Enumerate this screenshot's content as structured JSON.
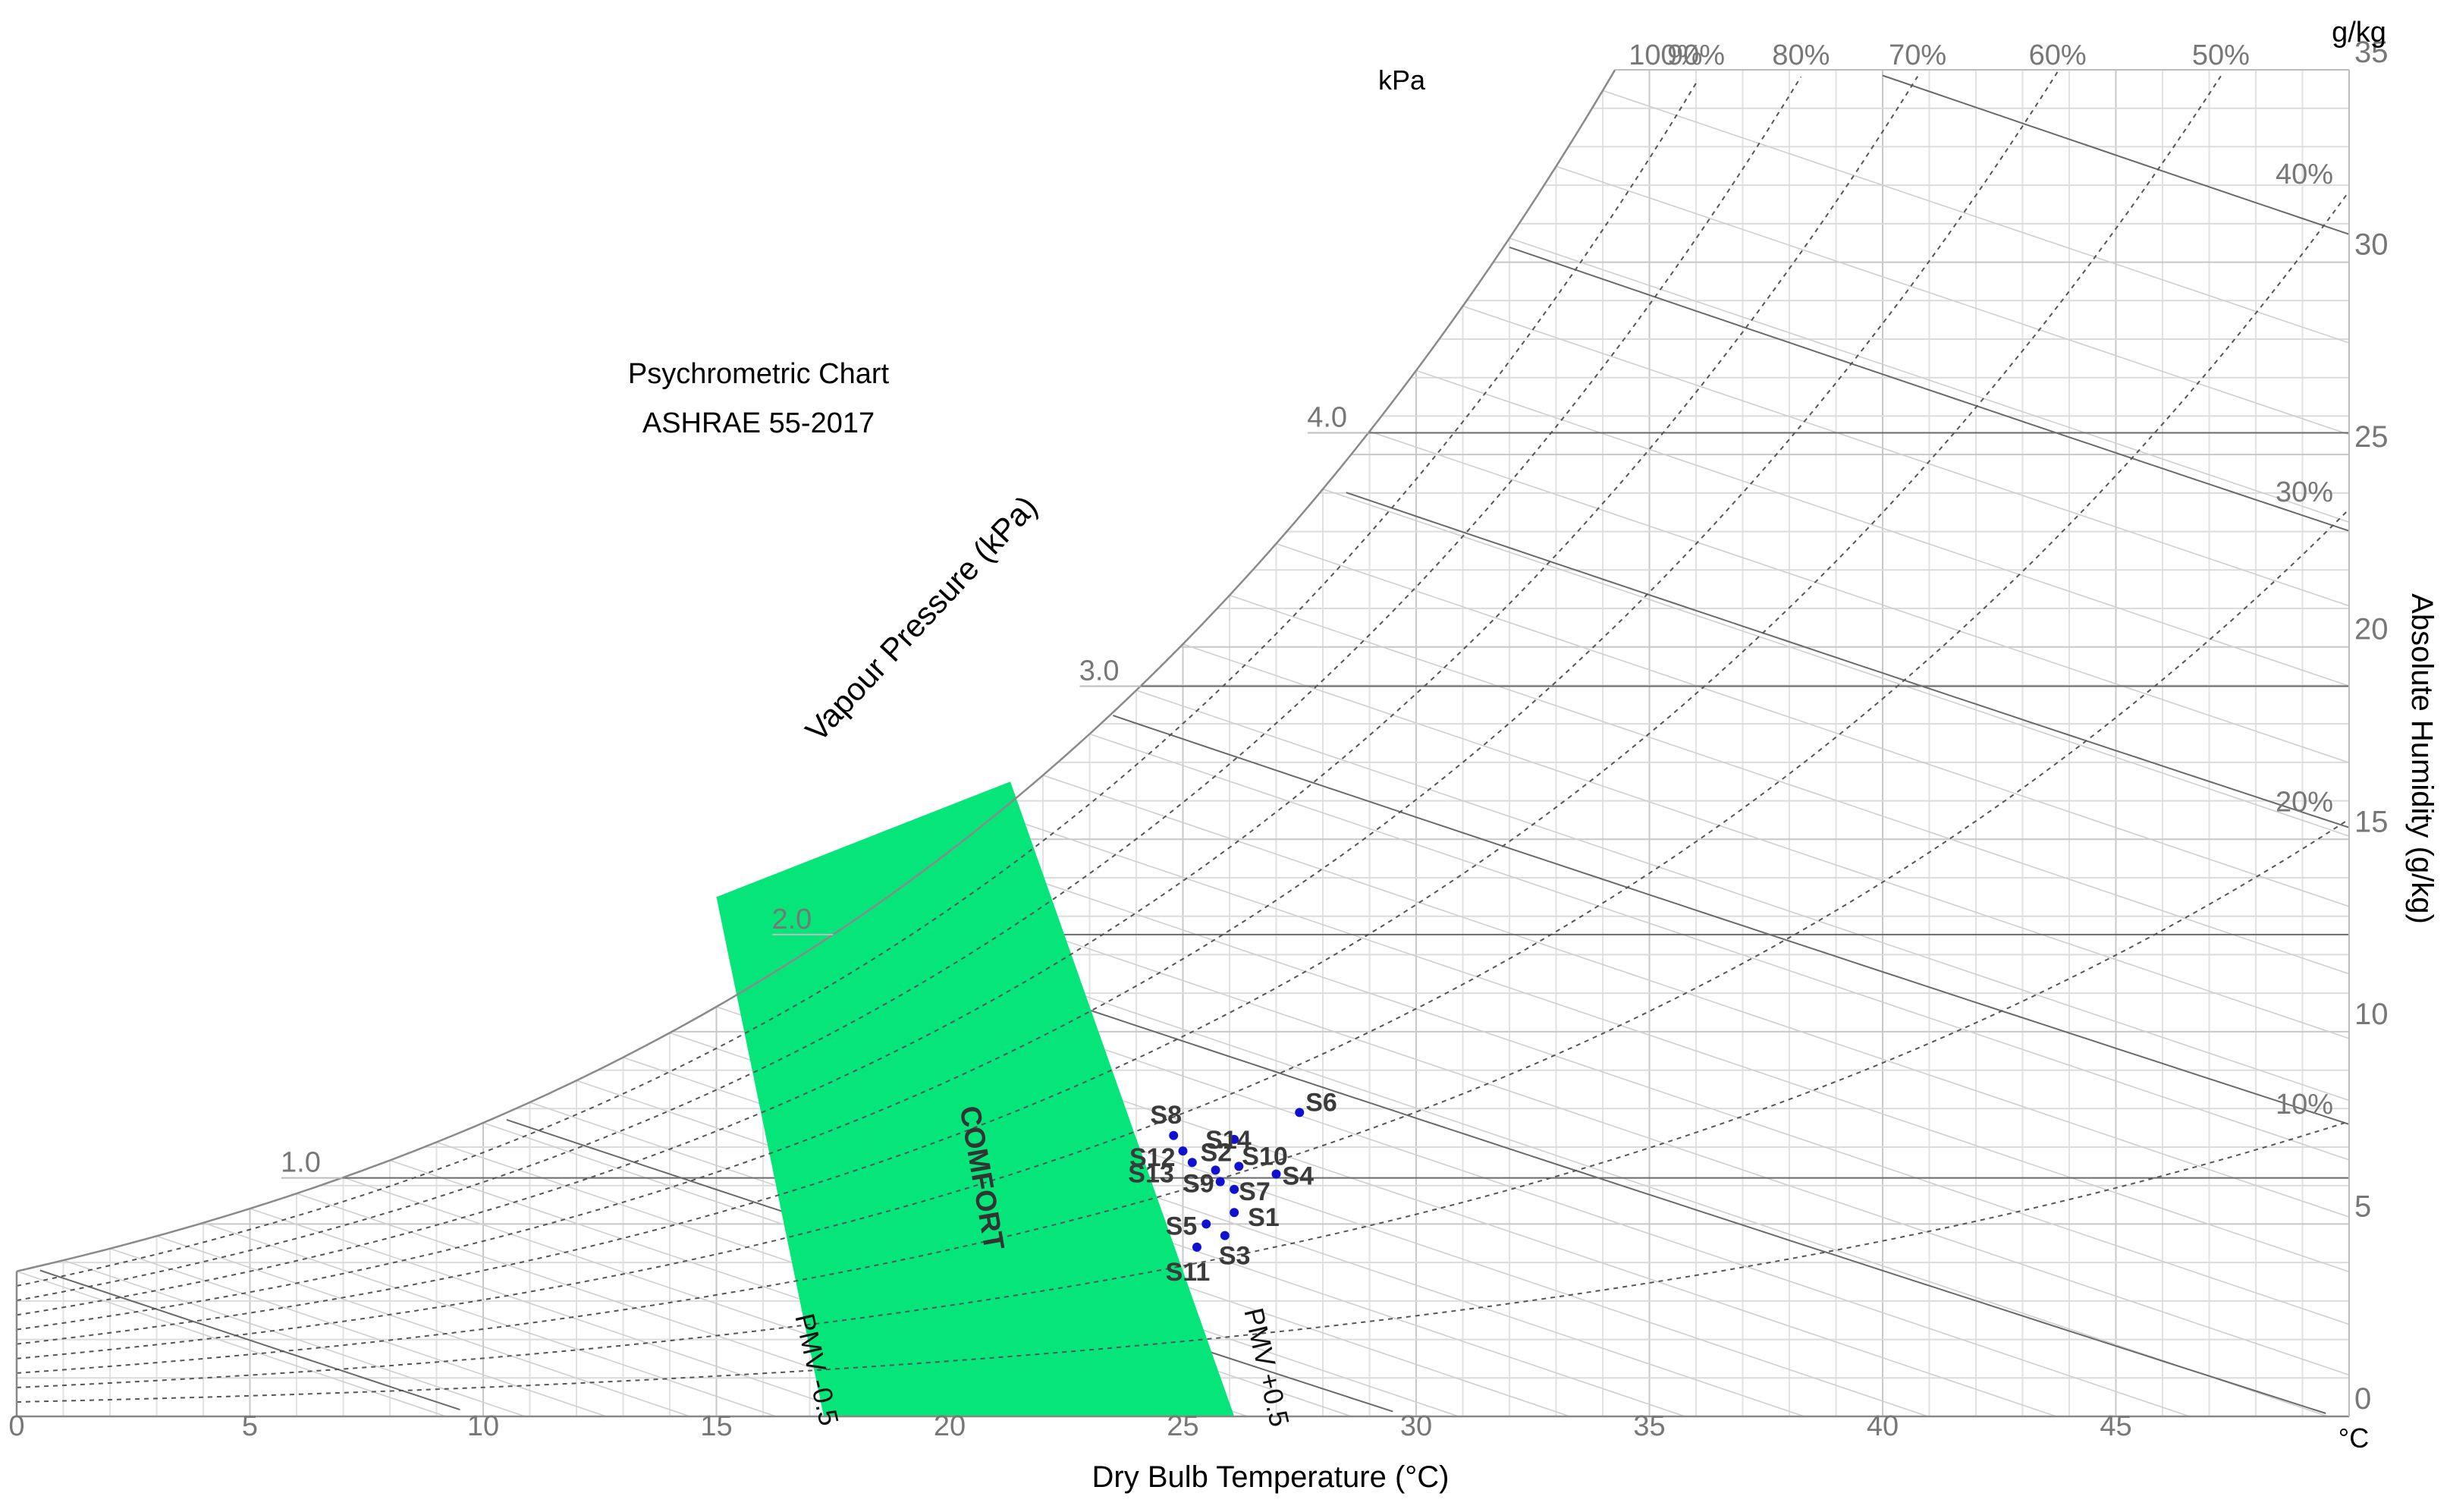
{
  "chart_data": {
    "type": "scatter",
    "title": "Psychrometric Chart",
    "subtitle": "ASHRAE 55-2017",
    "xlabel": "Dry Bulb Temperature (°C)",
    "ylabel": "Absolute Humidity (g/kg)",
    "y2label": "Vapour Pressure (kPa)",
    "x_unit": "°C",
    "y_unit": "g/kg",
    "vp_unit": "kPa",
    "xlim": [
      0,
      50
    ],
    "ylim": [
      0,
      35
    ],
    "x_ticks": [
      0,
      5,
      10,
      15,
      20,
      25,
      30,
      35,
      40,
      45
    ],
    "y_ticks": [
      0,
      5,
      10,
      15,
      20,
      25,
      30,
      35
    ],
    "vp_ticks": [
      {
        "label": "1.0",
        "value": 1.0
      },
      {
        "label": "2.0",
        "value": 2.0
      },
      {
        "label": "3.0",
        "value": 3.0
      },
      {
        "label": "4.0",
        "value": 4.0
      }
    ],
    "rh_curves": [
      {
        "label": "100%",
        "value": 100
      },
      {
        "label": "90%",
        "value": 90
      },
      {
        "label": "80%",
        "value": 80
      },
      {
        "label": "70%",
        "value": 70
      },
      {
        "label": "60%",
        "value": 60
      },
      {
        "label": "50%",
        "value": 50
      },
      {
        "label": "40%",
        "value": 40
      },
      {
        "label": "30%",
        "value": 30
      },
      {
        "label": "20%",
        "value": 20
      },
      {
        "label": "10%",
        "value": 10
      }
    ],
    "comfort_zone": {
      "label": "COMFORT",
      "color": "#05e57a",
      "pmv_lower_label": "PMV -0.5",
      "pmv_upper_label": "PMV +0.5",
      "polygon": [
        [
          17.3,
          0
        ],
        [
          26.1,
          0
        ],
        [
          21.3,
          16.5
        ],
        [
          15.0,
          13.5
        ]
      ]
    },
    "point_color": "#1010d0",
    "points": [
      {
        "label": "S1",
        "x": 26.1,
        "y": 5.3
      },
      {
        "label": "S2",
        "x": 25.7,
        "y": 6.4
      },
      {
        "label": "S3",
        "x": 25.9,
        "y": 4.7
      },
      {
        "label": "S4",
        "x": 27.0,
        "y": 6.3
      },
      {
        "label": "S5",
        "x": 25.5,
        "y": 5.0
      },
      {
        "label": "S6",
        "x": 27.5,
        "y": 7.9
      },
      {
        "label": "S7",
        "x": 26.1,
        "y": 5.9
      },
      {
        "label": "S8",
        "x": 24.8,
        "y": 7.3
      },
      {
        "label": "S9",
        "x": 25.8,
        "y": 6.1
      },
      {
        "label": "S10",
        "x": 26.2,
        "y": 6.5
      },
      {
        "label": "S11",
        "x": 25.3,
        "y": 4.4
      },
      {
        "label": "S12",
        "x": 25.0,
        "y": 6.9
      },
      {
        "label": "S13",
        "x": 25.2,
        "y": 6.6
      },
      {
        "label": "S14",
        "x": 26.1,
        "y": 7.2
      }
    ],
    "grid": true
  }
}
